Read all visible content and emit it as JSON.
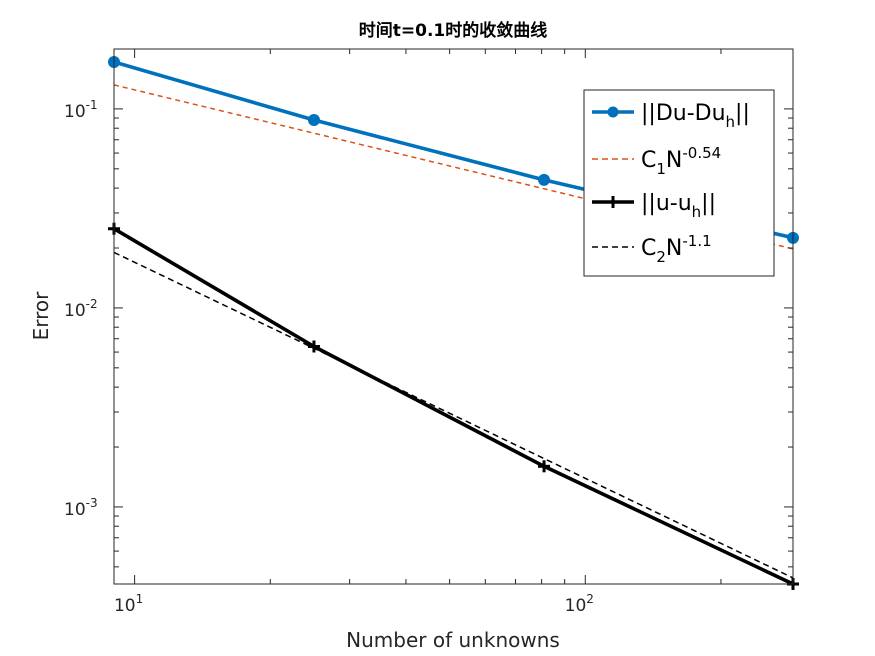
{
  "chart_data": {
    "type": "line",
    "title": "时间t=0.1时的收敛曲线",
    "xlabel": "Number of unknowns",
    "ylabel": "Error",
    "xscale": "log",
    "yscale": "log",
    "xlim": [
      9,
      289
    ],
    "ylim": [
      0.00041,
      0.2
    ],
    "grid": false,
    "legend_position": "top-right",
    "x_ticks": [
      {
        "value": 10,
        "base": "10",
        "exp": "1"
      },
      {
        "value": 100,
        "base": "10",
        "exp": "2"
      }
    ],
    "y_ticks": [
      {
        "value": 0.1,
        "base": "10",
        "exp": "-1"
      },
      {
        "value": 0.01,
        "base": "10",
        "exp": "-2"
      },
      {
        "value": 0.001,
        "base": "10",
        "exp": "-3"
      }
    ],
    "series": [
      {
        "name": "||Du-Du_h||",
        "legend": {
          "text": "||Du-Du",
          "sub": "h",
          "after": "||"
        },
        "color": "#0072bd",
        "style": "solid",
        "marker": "circle",
        "x": [
          9,
          25,
          81,
          289
        ],
        "y": [
          0.172,
          0.088,
          0.044,
          0.0225
        ]
      },
      {
        "name": "C_1N^-0.54",
        "legend": {
          "text": "C",
          "sub": "1",
          "mid": "N",
          "sup": "-0.54"
        },
        "color": "#d95319",
        "style": "dashed",
        "marker": "none",
        "x": [
          9,
          289
        ],
        "y": [
          0.132,
          0.0198
        ]
      },
      {
        "name": "||u-u_h||",
        "legend": {
          "text": "||u-u",
          "sub": "h",
          "after": "||"
        },
        "color": "#000000",
        "style": "solid",
        "marker": "plus",
        "x": [
          9,
          25,
          81,
          289
        ],
        "y": [
          0.025,
          0.0064,
          0.0016,
          0.00041
        ]
      },
      {
        "name": "C_2N^-1.1",
        "legend": {
          "text": "C",
          "sub": "2",
          "mid": "N",
          "sup": "-1.1"
        },
        "color": "#000000",
        "style": "dashed",
        "marker": "none",
        "x": [
          9,
          289
        ],
        "y": [
          0.019,
          0.00044
        ]
      }
    ]
  }
}
